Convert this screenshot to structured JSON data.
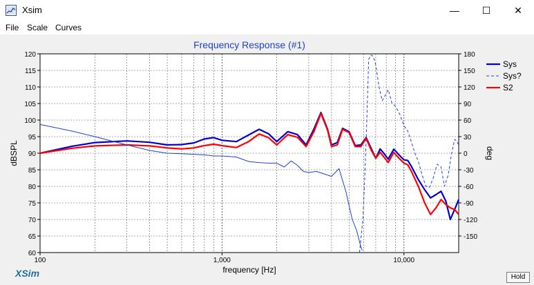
{
  "window": {
    "title": "Xsim",
    "minimize_glyph": "—",
    "maximize_glyph": "☐",
    "close_glyph": "✕"
  },
  "menu": [
    "File",
    "Scale",
    "Curves"
  ],
  "footer": {
    "brand": "XSim",
    "hold_label": "Hold"
  },
  "colors": {
    "sys": "#0000cc",
    "sys_phase": "#1f3fd8",
    "s2": "#ff0000",
    "title": "#1a3fd6",
    "brand": "#1f6fa0"
  },
  "chart_data": {
    "type": "line",
    "title": "Frequency Response (#1)",
    "xlabel": "frequency [Hz]",
    "ylabel": "dBSPL",
    "y2label": "deg",
    "xscale": "log",
    "xlim": [
      100,
      20000
    ],
    "ylim": [
      60,
      120
    ],
    "y2lim": [
      -180,
      180
    ],
    "grid": true,
    "legend_position": "top-right",
    "x_ticks": [
      100,
      1000,
      10000
    ],
    "x_tick_labels": [
      "100",
      "1,000",
      "10,000"
    ],
    "y_ticks": [
      60,
      65,
      70,
      75,
      80,
      85,
      90,
      95,
      100,
      105,
      110,
      115,
      120
    ],
    "y_tick_labels": [
      "60",
      "65",
      "70",
      "75",
      "80",
      "85",
      "90",
      "95",
      "100",
      "105",
      "110",
      "115",
      "120"
    ],
    "y2_ticks": [
      -150,
      -120,
      -90,
      -60,
      -30,
      0,
      30,
      60,
      90,
      120,
      150,
      180
    ],
    "y2_tick_labels": [
      "-150",
      "-120",
      "-90",
      "-60",
      "-30",
      "0",
      "30",
      "60",
      "90",
      "120",
      "150",
      "180"
    ],
    "series": [
      {
        "name": "Sys",
        "axis": "left",
        "style": "solid",
        "x": [
          100,
          150,
          200,
          300,
          400,
          500,
          600,
          700,
          800,
          900,
          1000,
          1200,
          1400,
          1600,
          1800,
          2000,
          2300,
          2600,
          2900,
          3200,
          3500,
          3800,
          4000,
          4300,
          4600,
          5000,
          5400,
          5800,
          6200,
          6600,
          7000,
          7400,
          7800,
          8200,
          8800,
          9400,
          10000,
          10500,
          11000,
          12000,
          13000,
          14000,
          15000,
          16000,
          17000,
          18000,
          19000,
          20000
        ],
        "y": [
          90,
          92.1,
          93.2,
          93.7,
          93.3,
          92.5,
          92.6,
          93.1,
          94.3,
          94.7,
          93.9,
          93.5,
          95.5,
          97.2,
          95.9,
          93.5,
          96.5,
          95.6,
          92.5,
          97.3,
          102.3,
          97.3,
          92.5,
          93.2,
          97.5,
          96.5,
          92.3,
          92.5,
          94.7,
          91.5,
          88.5,
          91.3,
          89.8,
          88.2,
          91.2,
          89.5,
          88,
          87.8,
          86,
          82,
          79,
          76.5,
          77.5,
          78.5,
          75.5,
          70,
          73,
          76
        ]
      },
      {
        "name": "Sys?",
        "axis": "right",
        "style": "dashed",
        "x": [
          5700,
          5950,
          6100,
          6250,
          6400,
          6600,
          6800,
          7000,
          7300,
          7600,
          7900,
          8200,
          8600,
          9000,
          9500,
          10000,
          10500,
          11000,
          11500,
          12000,
          12600,
          13200,
          13800,
          14500,
          15200,
          16000,
          16700,
          17500,
          18300,
          19000,
          19500,
          20000
        ],
        "y": [
          -180,
          -120,
          -40,
          60,
          170,
          178,
          175,
          160,
          120,
          95,
          105,
          115,
          90,
          85,
          70,
          50,
          40,
          20,
          0,
          -15,
          -40,
          -60,
          -62,
          -45,
          -20,
          -25,
          -60,
          -40,
          0,
          25,
          22,
          15
        ]
      },
      {
        "name": "S2",
        "axis": "left",
        "style": "solid",
        "x": [
          100,
          150,
          200,
          300,
          400,
          500,
          600,
          700,
          800,
          900,
          1000,
          1200,
          1400,
          1600,
          1800,
          2000,
          2300,
          2600,
          2900,
          3200,
          3500,
          3800,
          4000,
          4300,
          4600,
          5000,
          5400,
          5800,
          6200,
          6600,
          7000,
          7400,
          7800,
          8200,
          8800,
          9400,
          10000,
          10500,
          11000,
          12000,
          13000,
          14000,
          15000,
          16000,
          17000,
          18000,
          19000,
          20000
        ],
        "y": [
          90,
          91.5,
          92.2,
          92.5,
          92.2,
          91.6,
          91.3,
          91.6,
          92.3,
          92.7,
          92.3,
          91.7,
          93.5,
          95.8,
          94.7,
          92.5,
          95.6,
          94.8,
          92,
          96.5,
          102,
          97,
          92,
          92.5,
          97.2,
          96.2,
          92,
          92,
          94.5,
          91,
          88.5,
          90.3,
          88.7,
          87.2,
          90.2,
          88.5,
          87,
          86.5,
          84.5,
          80,
          75,
          71.5,
          73.5,
          76,
          74.5,
          73.5,
          73,
          71.5
        ]
      },
      {
        "name": "",
        "axis": "right",
        "style": "solid",
        "x": [
          100,
          150,
          200,
          300,
          400,
          500,
          600,
          700,
          800,
          900,
          1000,
          1200,
          1400,
          1600,
          1800,
          2000,
          2200,
          2400,
          2600,
          2800,
          3000,
          3300,
          3600,
          4000,
          4400,
          4800,
          5200,
          5500,
          5800,
          5900
        ],
        "y": [
          52,
          40,
          30,
          15,
          5,
          0,
          -1,
          -2,
          -3,
          -5,
          -5,
          -7,
          -15,
          -17,
          -18,
          -18,
          -25,
          -14,
          -22,
          -33,
          -35,
          -33,
          -37,
          -42,
          -28,
          -70,
          -120,
          -140,
          -170,
          -176
        ]
      }
    ]
  }
}
